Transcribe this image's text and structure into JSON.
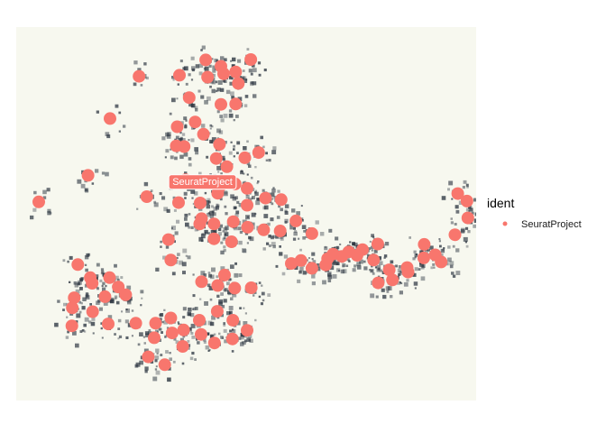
{
  "chart_data": {
    "type": "scatter",
    "title": "",
    "xlabel": "",
    "ylabel": "",
    "xlim": [
      0,
      100
    ],
    "ylim": [
      0,
      100
    ],
    "grid": false,
    "legend_placement": "right",
    "legend": {
      "title": "ident",
      "entries": [
        "SeuratProject"
      ]
    },
    "annotation": "SeuratProject",
    "annotation_at": [
      40.5,
      58.5
    ],
    "colors": {
      "SeuratProject": "#F8766D",
      "tissue_dark": "#2b3440",
      "tissue_background": "#f7f8ef"
    },
    "series": [
      {
        "name": "SeuratProject",
        "x": [
          41.2,
          44.5,
          47.7,
          51,
          45.1,
          48.3,
          41.6,
          35.5,
          26.7,
          20.4,
          37.6,
          44.5,
          47.7,
          38.9,
          35,
          40.7,
          44.2,
          36.5,
          34.8,
          15.6,
          43.5,
          49.7,
          45.8,
          52.7,
          4.9,
          28.4,
          43.8,
          40,
          35.3,
          36.8,
          44.2,
          47.6,
          57.6,
          54.2,
          50.2,
          50.2,
          47.2,
          43,
          40.3,
          60.8,
          64.3,
          57.4,
          53.8,
          50.3,
          46.8,
          43,
          39.9,
          33.1,
          33.6,
          13.4,
          20.3,
          16.1,
          22.2,
          16.5,
          23.8,
          45.3,
          51.1,
          47.5,
          43.8,
          40.3,
          12.6,
          12.2,
          12.1,
          16.6,
          19.3,
          20,
          26,
          30.3,
          33.6,
          36.4,
          39.8,
          43.7,
          47.1,
          50.2,
          47,
          43.1,
          40.2,
          36.2,
          33.9,
          30,
          28.7,
          32.3,
          67.7,
          70.8,
          74.1,
          77.7,
          81.1,
          85,
          88.6,
          91.1,
          95.4,
          98.2,
          98,
          96,
          85.2,
          81.8,
          78.7,
          92.4,
          88.7,
          78.6,
          75.3,
          72.3,
          68.9,
          67.3,
          64.3,
          61.9,
          59.8
        ],
        "y": [
          91.2,
          89.5,
          88,
          91.3,
          87.5,
          84.9,
          86.6,
          87.1,
          86.8,
          75.5,
          81.1,
          79.3,
          79.4,
          74.6,
          73.3,
          71.3,
          68.6,
          68,
          68.2,
          60.3,
          64.8,
          65,
          62.6,
          66.4,
          53.2,
          54.6,
          55.5,
          52.9,
          53,
          59.1,
          57.2,
          58,
          53.8,
          54.2,
          56.8,
          52.3,
          47.9,
          47.3,
          48.7,
          48.1,
          44.7,
          45.4,
          45.7,
          46.4,
          42.5,
          43.3,
          47.3,
          43.1,
          37.6,
          36.4,
          32.9,
          32.9,
          30.4,
          31.4,
          28.3,
          33.6,
          30.2,
          30.1,
          30.8,
          31.8,
          27.5,
          24.8,
          20,
          23.8,
          27.8,
          20.5,
          20.7,
          20.7,
          22.1,
          18.9,
          21.5,
          23.9,
          21.5,
          18.8,
          16.5,
          15.4,
          17.7,
          14.5,
          18.1,
          16.8,
          11.7,
          9.6,
          38,
          38.6,
          38.9,
          37.6,
          35,
          35.6,
          38.2,
          39,
          44.4,
          48.9,
          53.4,
          55.4,
          34.4,
          32.3,
          31.5,
          37.1,
          41.8,
          41.9,
          40.4,
          39.8,
          39.2,
          36.3,
          35.4,
          37.5,
          36.7
        ]
      }
    ]
  }
}
